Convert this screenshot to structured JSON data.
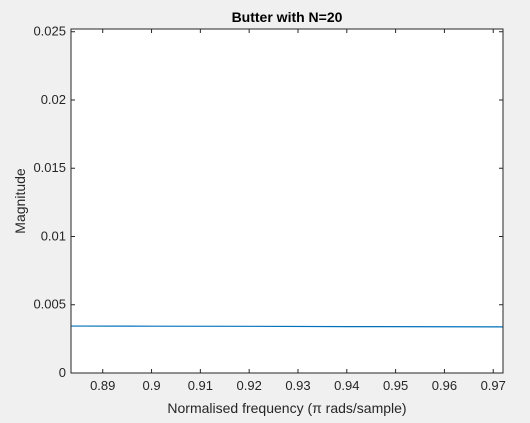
{
  "chart_data": {
    "type": "line",
    "title": "Butter with N=20",
    "xlabel": "Normalised frequency (π rads/sample)",
    "ylabel": "Magnitude",
    "xlim": [
      0.8835,
      0.972
    ],
    "ylim": [
      0,
      0.0252
    ],
    "x_ticks": [
      0.89,
      0.9,
      0.91,
      0.92,
      0.93,
      0.94,
      0.95,
      0.96,
      0.97
    ],
    "x_tick_labels": [
      "0.89",
      "0.9",
      "0.91",
      "0.92",
      "0.93",
      "0.94",
      "0.95",
      "0.96",
      "0.97"
    ],
    "y_ticks": [
      0,
      0.005,
      0.01,
      0.015,
      0.02,
      0.025
    ],
    "y_tick_labels": [
      "0",
      "0.005",
      "0.01",
      "0.015",
      "0.02",
      "0.025"
    ],
    "grid": false,
    "series": [
      {
        "color": "#0072bd",
        "x": [
          0.8835,
          0.9,
          0.92,
          0.94,
          0.96,
          0.972
        ],
        "y": [
          0.00344,
          0.00343,
          0.00342,
          0.0034,
          0.00339,
          0.00338
        ]
      }
    ]
  }
}
